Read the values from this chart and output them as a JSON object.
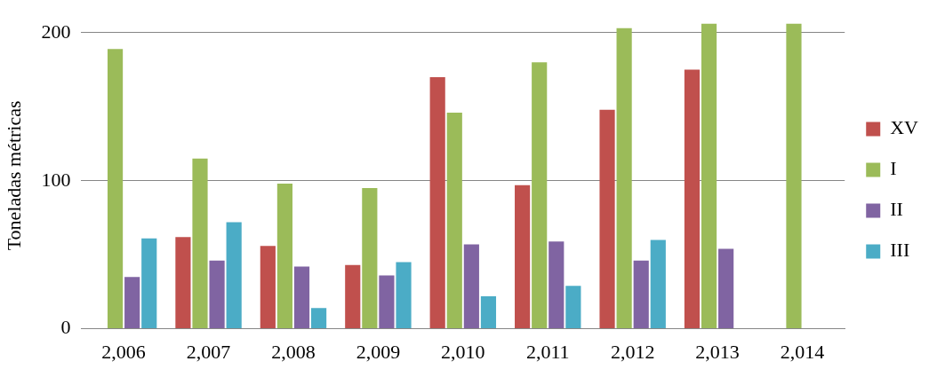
{
  "chart_data": {
    "type": "bar",
    "ylabel": "Toneladas métricas",
    "categories": [
      "2,006",
      "2,007",
      "2,008",
      "2,009",
      "2,010",
      "2,011",
      "2,012",
      "2,013",
      "2,014"
    ],
    "series": [
      {
        "name": "XV",
        "color": "#c0504d",
        "values": [
          null,
          62,
          56,
          43,
          170,
          97,
          148,
          175,
          null
        ]
      },
      {
        "name": "I",
        "color": "#9bbb59",
        "values": [
          189,
          115,
          98,
          95,
          146,
          180,
          203,
          206,
          206
        ]
      },
      {
        "name": "II",
        "color": "#8064a2",
        "values": [
          35,
          46,
          42,
          36,
          57,
          59,
          46,
          54,
          null
        ]
      },
      {
        "name": "III",
        "color": "#4bacc6",
        "values": [
          61,
          72,
          14,
          45,
          22,
          29,
          60,
          null,
          null
        ]
      }
    ],
    "ylim": [
      0,
      207
    ],
    "yticks": [
      0,
      100,
      200
    ],
    "grid": "y",
    "legend": "right"
  }
}
